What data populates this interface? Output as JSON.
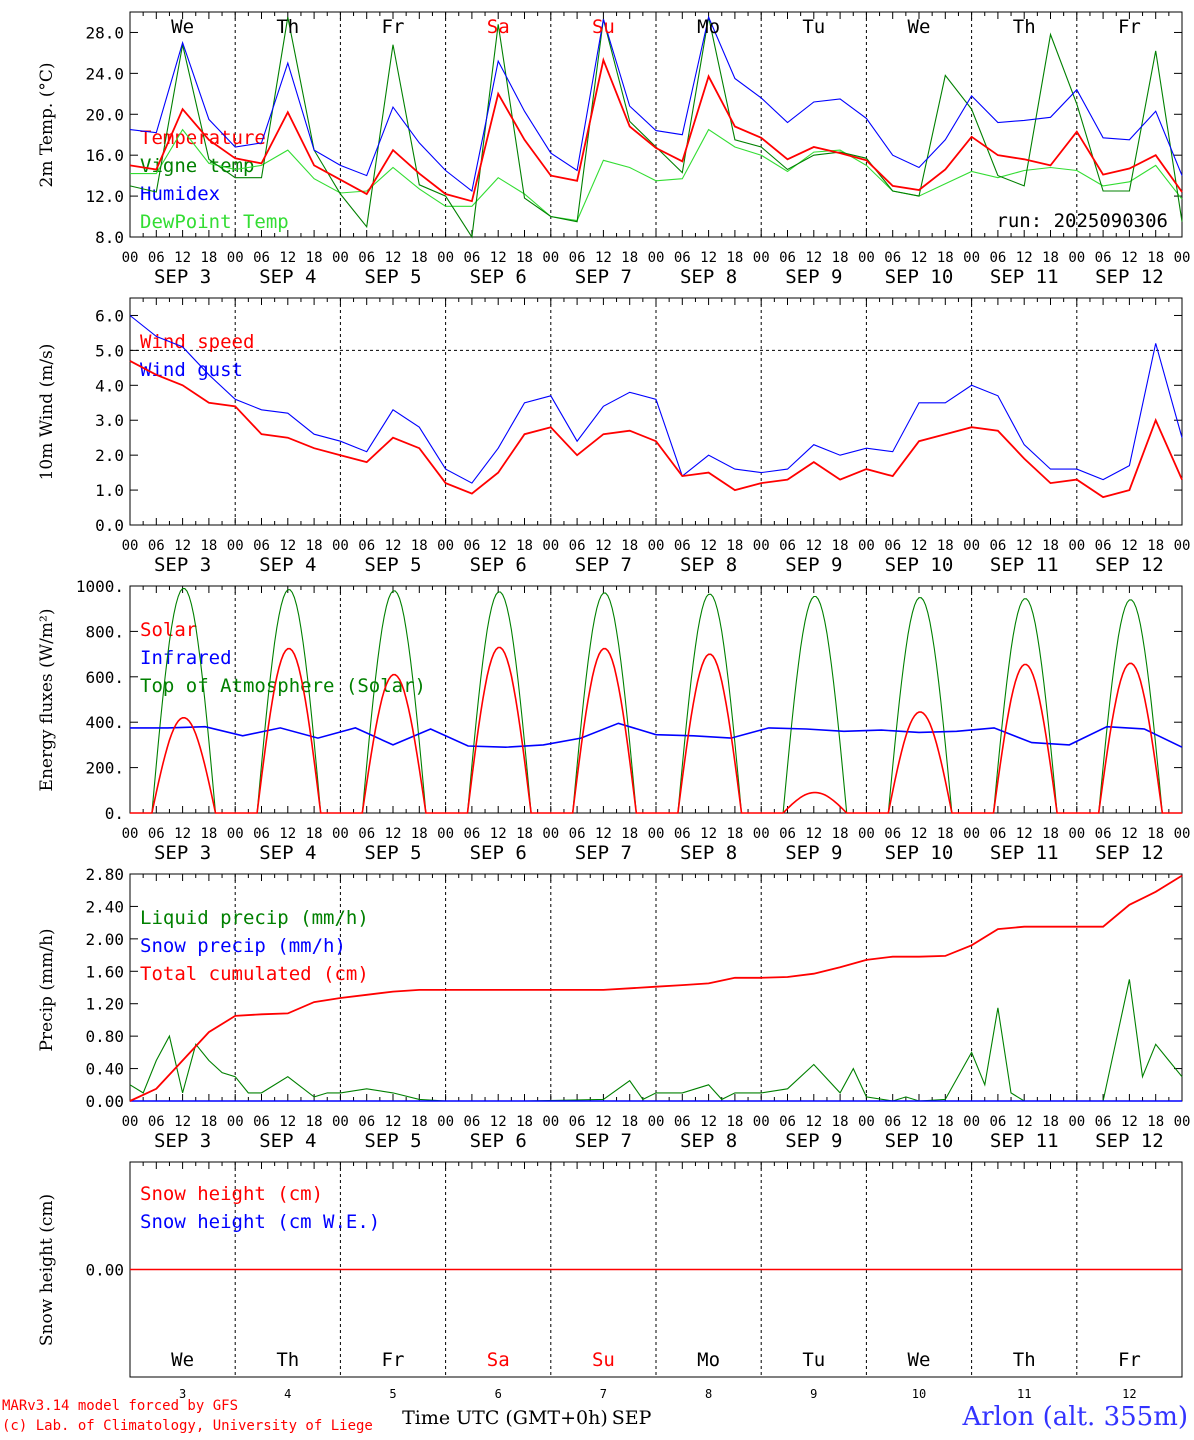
{
  "days_of_week": [
    "We",
    "Th",
    "Fr",
    "Sa",
    "Su",
    "Mo",
    "Tu",
    "We",
    "Th",
    "Fr"
  ],
  "weekend_indices": [
    3,
    4
  ],
  "date_labels": [
    "SEP  3",
    "SEP  4",
    "SEP  5",
    "SEP  6",
    "SEP  7",
    "SEP  8",
    "SEP  9",
    "SEP 10",
    "SEP 11",
    "SEP 12"
  ],
  "hour_ticks": [
    "00",
    "06",
    "12",
    "18"
  ],
  "last_hour_tick": "00",
  "day_numbers": [
    "3",
    "4",
    "5",
    "6",
    "7",
    "8",
    "9",
    "10",
    "11",
    "12"
  ],
  "run_label": "run: 2025090306",
  "x_axis_title": "Time UTC (GMT+0h)",
  "x_axis_month": "SEP",
  "footer": {
    "line1": "MARv3.14 model forced by GFS",
    "line2": "(c) Lab. of Climatology, University of Liege",
    "station": "Arlon (alt. 355m)"
  },
  "colors": {
    "red": "#ff0000",
    "green": "#008000",
    "blue": "#0000ff",
    "lightgreen": "#33dd33",
    "station": "#3333ff"
  },
  "chart_data": [
    {
      "type": "line",
      "ylabel": "2m Temp. (°C)",
      "ylim": [
        8,
        30
      ],
      "yticks": [
        8,
        12,
        16,
        20,
        24,
        28
      ],
      "tick_labels": [
        "8.0",
        "12.0",
        "16.0",
        "20.0",
        "24.0",
        "28.0"
      ],
      "x_hours": [
        0,
        6,
        12,
        18,
        24,
        30,
        36,
        42,
        48,
        54,
        60,
        66,
        72,
        78,
        84,
        90,
        96,
        102,
        108,
        114,
        120,
        126,
        132,
        138,
        144,
        150,
        156,
        162,
        168,
        174,
        180,
        186,
        192,
        198,
        204,
        210,
        216,
        222,
        228,
        234,
        240
      ],
      "series": [
        {
          "name": "Temperature",
          "color": "red",
          "values": [
            15,
            14.6,
            20.5,
            17.5,
            15.7,
            15.2,
            20.2,
            15,
            13.6,
            12.2,
            16.5,
            14.2,
            12.2,
            11.5,
            22,
            17.5,
            14,
            13.5,
            25.3,
            18.8,
            16.7,
            15.4,
            23.7,
            18.8,
            17.7,
            15.6,
            16.8,
            16.2,
            15.5,
            13,
            12.6,
            14.6,
            17.8,
            16,
            15.6,
            15,
            18.3,
            14.1,
            14.7,
            16,
            12.4
          ]
        },
        {
          "name": "Vigne temp",
          "color": "green",
          "values": [
            13,
            12.4,
            26.8,
            15.6,
            13.8,
            13.8,
            29.5,
            16.5,
            12.2,
            9,
            26.8,
            13.1,
            12,
            7.3,
            28.8,
            11.8,
            10,
            9.5,
            29.3,
            19.3,
            16.8,
            14.3,
            29.5,
            17.5,
            16.8,
            14.6,
            16,
            16.3,
            15.7,
            12.5,
            12,
            23.8,
            20.5,
            14,
            13,
            27.8,
            21,
            12.5,
            12.5,
            26.2,
            9.5
          ]
        },
        {
          "name": "Humidex",
          "color": "blue",
          "values": [
            18.5,
            18.2,
            27,
            19.5,
            16.8,
            17.2,
            25,
            16.5,
            15,
            14,
            20.7,
            17.2,
            14.5,
            12.5,
            25.2,
            20.3,
            16.2,
            14.5,
            29.3,
            20.8,
            18.4,
            18,
            29.5,
            23.5,
            21.6,
            19.2,
            21.2,
            21.5,
            19.6,
            16,
            14.8,
            17.5,
            21.8,
            19.2,
            19.4,
            19.7,
            22.4,
            17.7,
            17.5,
            20.3,
            14
          ]
        },
        {
          "name": "DewPoint Temp",
          "color": "lightgreen",
          "values": [
            14.2,
            14.2,
            18.5,
            15.2,
            14.6,
            15,
            16.5,
            13.7,
            12.3,
            12.5,
            14.8,
            12.7,
            11,
            11,
            13.8,
            12.2,
            10,
            9.6,
            15.5,
            14.8,
            13.5,
            13.7,
            18.5,
            16.8,
            16,
            14.4,
            16.3,
            16.5,
            15,
            12.5,
            12,
            13.2,
            14.4,
            13.8,
            14.5,
            14.8,
            14.5,
            13,
            13.4,
            15,
            11.7
          ]
        }
      ]
    },
    {
      "type": "line",
      "ylabel": "10m Wind (m/s)",
      "ylim": [
        0,
        6.5
      ],
      "yticks": [
        0,
        1,
        2,
        3,
        4,
        5,
        6
      ],
      "tick_labels": [
        "0.0",
        "1.0",
        "2.0",
        "3.0",
        "4.0",
        "5.0",
        "6.0"
      ],
      "reference_line": 5.0,
      "x_hours": [
        0,
        6,
        12,
        18,
        24,
        30,
        36,
        42,
        48,
        54,
        60,
        66,
        72,
        78,
        84,
        90,
        96,
        102,
        108,
        114,
        120,
        126,
        132,
        138,
        144,
        150,
        156,
        162,
        168,
        174,
        180,
        186,
        192,
        198,
        204,
        210,
        216,
        222,
        228,
        234,
        240
      ],
      "series": [
        {
          "name": "Wind speed",
          "color": "red",
          "values": [
            4.7,
            4.3,
            4,
            3.5,
            3.4,
            2.6,
            2.5,
            2.2,
            2,
            1.8,
            2.5,
            2.2,
            1.2,
            0.9,
            1.5,
            2.6,
            2.8,
            2,
            2.6,
            2.7,
            2.4,
            1.4,
            1.5,
            1,
            1.2,
            1.3,
            1.8,
            1.3,
            1.6,
            1.4,
            2.4,
            2.6,
            2.8,
            2.7,
            1.9,
            1.2,
            1.3,
            0.8,
            1,
            3,
            1.3
          ]
        },
        {
          "name": "Wind gust",
          "color": "blue",
          "values": [
            6,
            5.4,
            5.1,
            4.3,
            3.6,
            3.3,
            3.2,
            2.6,
            2.4,
            2.1,
            3.3,
            2.8,
            1.6,
            1.2,
            2.2,
            3.5,
            3.7,
            2.4,
            3.4,
            3.8,
            3.6,
            1.4,
            2,
            1.6,
            1.5,
            1.6,
            2.3,
            2,
            2.2,
            2.1,
            3.5,
            3.5,
            4,
            3.7,
            2.3,
            1.6,
            1.6,
            1.3,
            1.7,
            5.2,
            2.5
          ]
        }
      ]
    },
    {
      "type": "line",
      "ylabel": "Energy fluxes (W/m²)",
      "ylim": [
        0,
        1000
      ],
      "yticks": [
        0,
        200,
        400,
        600,
        800,
        1000
      ],
      "tick_labels": [
        "0.",
        "200.",
        "400.",
        "600.",
        "800.",
        "1000."
      ],
      "daily_peak_hour": 12,
      "daylight_hours": [
        5,
        19.5
      ],
      "series": [
        {
          "name": "Solar",
          "color": "red",
          "daily_peaks": [
            420,
            725,
            610,
            730,
            725,
            700,
            90,
            445,
            655,
            660
          ]
        },
        {
          "name": "Infrared",
          "color": "blue",
          "values": [
            375,
            375,
            380,
            340,
            375,
            330,
            375,
            300,
            370,
            295,
            290,
            300,
            330,
            395,
            345,
            340,
            330,
            375,
            370,
            360,
            365,
            355,
            360,
            375,
            310,
            300,
            380,
            370,
            290
          ]
        },
        {
          "name": "Top of Atmosphere (Solar)",
          "color": "green",
          "daily_peaks": [
            990,
            985,
            980,
            975,
            970,
            965,
            955,
            950,
            945,
            940
          ]
        }
      ]
    },
    {
      "type": "line",
      "ylabel": "Precip (mm/h)",
      "ylim": [
        0,
        2.8
      ],
      "yticks": [
        0,
        0.4,
        0.8,
        1.2,
        1.6,
        2.0,
        2.4,
        2.8
      ],
      "tick_labels": [
        "0.00",
        "0.40",
        "0.80",
        "1.20",
        "1.60",
        "2.00",
        "2.40",
        "2.80"
      ],
      "series": [
        {
          "name": "Liquid precip (mm/h)",
          "color": "green",
          "x_hours": [
            0,
            3,
            6,
            9,
            12,
            15,
            18,
            21,
            24,
            27,
            30,
            36,
            42,
            45,
            48,
            54,
            60,
            66,
            72,
            90,
            108,
            114,
            117,
            120,
            126,
            132,
            135,
            138,
            144,
            150,
            156,
            162,
            165,
            168,
            174,
            177,
            180,
            186,
            192,
            195,
            198,
            201,
            204,
            210,
            216,
            222,
            228,
            231,
            234,
            237,
            240
          ],
          "values": [
            0.2,
            0.1,
            0.5,
            0.8,
            0.1,
            0.7,
            0.5,
            0.35,
            0.3,
            0.1,
            0.1,
            0.3,
            0.05,
            0.1,
            0.1,
            0.15,
            0.1,
            0.02,
            0,
            0,
            0.02,
            0.25,
            0.02,
            0.1,
            0.1,
            0.2,
            0.02,
            0.1,
            0.1,
            0.15,
            0.45,
            0.1,
            0.4,
            0.05,
            0,
            0.05,
            0,
            0.02,
            0.6,
            0.2,
            1.15,
            0.1,
            0,
            0,
            0,
            0,
            1.5,
            0.3,
            0.7,
            0.5,
            0.3
          ]
        },
        {
          "name": "Snow precip (mm/h)",
          "color": "blue",
          "values": [
            0
          ]
        },
        {
          "name": "Total cumulated (cm)",
          "color": "red",
          "x_hours": [
            0,
            6,
            12,
            18,
            24,
            30,
            36,
            42,
            48,
            54,
            60,
            66,
            72,
            96,
            108,
            114,
            120,
            126,
            132,
            138,
            144,
            150,
            156,
            162,
            168,
            174,
            180,
            186,
            192,
            198,
            204,
            210,
            216,
            222,
            228,
            234,
            240
          ],
          "values": [
            0,
            0.15,
            0.5,
            0.85,
            1.05,
            1.07,
            1.08,
            1.22,
            1.27,
            1.31,
            1.35,
            1.37,
            1.37,
            1.37,
            1.37,
            1.39,
            1.41,
            1.43,
            1.45,
            1.52,
            1.52,
            1.53,
            1.57,
            1.65,
            1.74,
            1.78,
            1.78,
            1.79,
            1.92,
            2.12,
            2.15,
            2.15,
            2.15,
            2.15,
            2.42,
            2.58,
            2.78
          ]
        }
      ]
    },
    {
      "type": "line",
      "ylabel": "Snow height (cm)",
      "ylim": [
        -1,
        1
      ],
      "yticks": [
        0
      ],
      "tick_labels": [
        "0.00"
      ],
      "series": [
        {
          "name": "Snow height (cm)",
          "color": "red",
          "values": [
            0
          ]
        },
        {
          "name": "Snow height (cm W.E.)",
          "color": "blue",
          "values": [
            0
          ]
        }
      ]
    }
  ]
}
